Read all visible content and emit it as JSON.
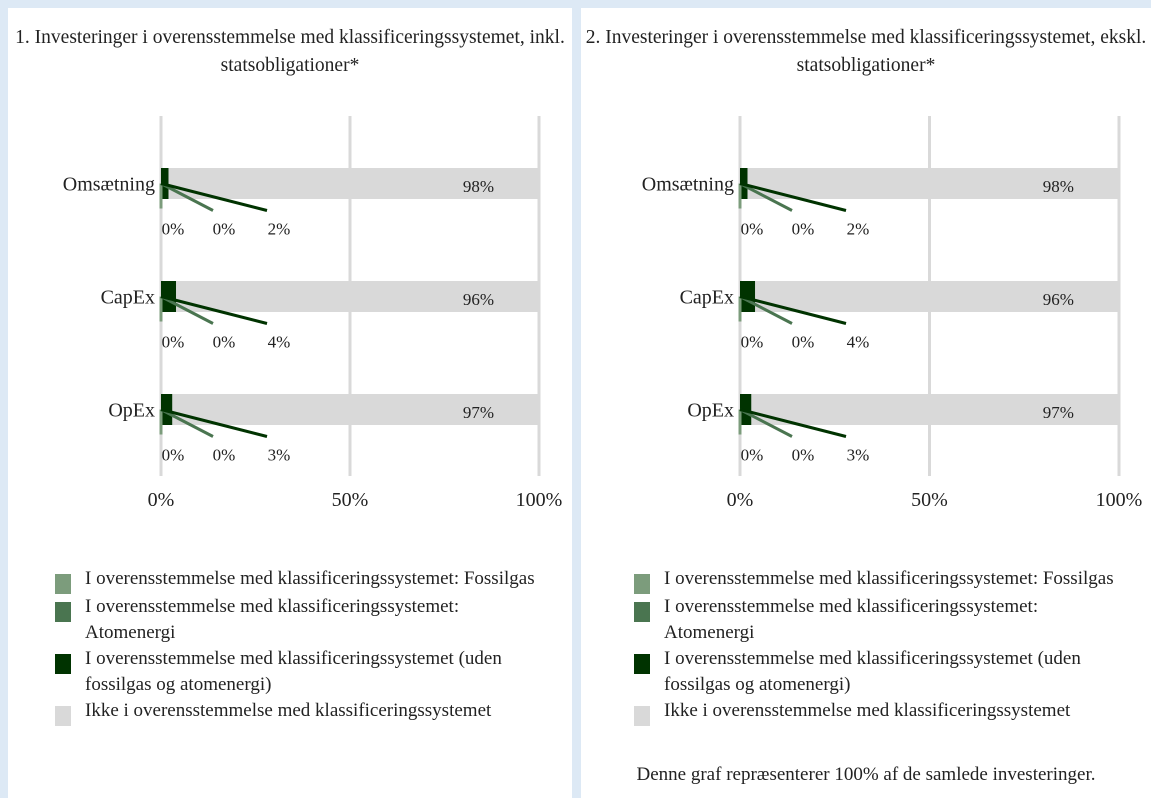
{
  "charts": [
    {
      "title": "1. Investeringer i overensstemmelse med klassificeringssystemet, inkl. statsobligationer*"
    },
    {
      "title": "2. Investeringer i overensstemmelse med klassificeringssystemet, ekskl. statsobligationer*",
      "note": "Denne graf repræsenterer 100% af de samlede investeringer."
    }
  ],
  "legend": [
    {
      "label": "I overensstemmelse med klassificeringssystemet: Fossilgas",
      "color": "#7c9c7c"
    },
    {
      "label": "I overensstemmelse med klassificeringssystemet: Atomenergi",
      "color": "#4a7550"
    },
    {
      "label": "I overensstemmelse med klassificeringssystemet (uden fossilgas og atomenergi)",
      "color": "#003300"
    },
    {
      "label": "Ikke i overensstemmelse med klassificeringssystemet",
      "color": "#d9d9d9"
    }
  ],
  "chart_data": [
    {
      "type": "bar",
      "orientation": "horizontal",
      "stacked": true,
      "title": "1. Investeringer i overensstemmelse med klassificeringssystemet, inkl. statsobligationer*",
      "categories": [
        "Omsætning",
        "CapEx",
        "OpEx"
      ],
      "series": [
        {
          "name": "I overensstemmelse med klassificeringssystemet: Fossilgas",
          "values": [
            0,
            0,
            0
          ],
          "labels": [
            "0%",
            "0%",
            "0%"
          ]
        },
        {
          "name": "I overensstemmelse med klassificeringssystemet: Atomenergi",
          "values": [
            0,
            0,
            0
          ],
          "labels": [
            "0%",
            "0%",
            "0%"
          ]
        },
        {
          "name": "I overensstemmelse med klassificeringssystemet (uden fossilgas og atomenergi)",
          "values": [
            2,
            4,
            3
          ],
          "labels": [
            "2%",
            "4%",
            "3%"
          ]
        },
        {
          "name": "Ikke i overensstemmelse med klassificeringssystemet",
          "values": [
            98,
            96,
            97
          ],
          "labels": [
            "98%",
            "96%",
            "97%"
          ]
        }
      ],
      "xlim": [
        0,
        100
      ],
      "xticks": [
        "0%",
        "50%",
        "100%"
      ],
      "grid": true,
      "legend_position": "bottom"
    },
    {
      "type": "bar",
      "orientation": "horizontal",
      "stacked": true,
      "title": "2. Investeringer i overensstemmelse med klassificeringssystemet, ekskl. statsobligationer*",
      "categories": [
        "Omsætning",
        "CapEx",
        "OpEx"
      ],
      "series": [
        {
          "name": "I overensstemmelse med klassificeringssystemet: Fossilgas",
          "values": [
            0,
            0,
            0
          ],
          "labels": [
            "0%",
            "0%",
            "0%"
          ]
        },
        {
          "name": "I overensstemmelse med klassificeringssystemet: Atomenergi",
          "values": [
            0,
            0,
            0
          ],
          "labels": [
            "0%",
            "0%",
            "0%"
          ]
        },
        {
          "name": "I overensstemmelse med klassificeringssystemet (uden fossilgas og atomenergi)",
          "values": [
            2,
            4,
            3
          ],
          "labels": [
            "2%",
            "4%",
            "3%"
          ]
        },
        {
          "name": "Ikke i overensstemmelse med klassificeringssystemet",
          "values": [
            98,
            96,
            97
          ],
          "labels": [
            "98%",
            "96%",
            "97%"
          ]
        }
      ],
      "xlim": [
        0,
        100
      ],
      "xticks": [
        "0%",
        "50%",
        "100%"
      ],
      "grid": true,
      "legend_position": "bottom"
    }
  ]
}
